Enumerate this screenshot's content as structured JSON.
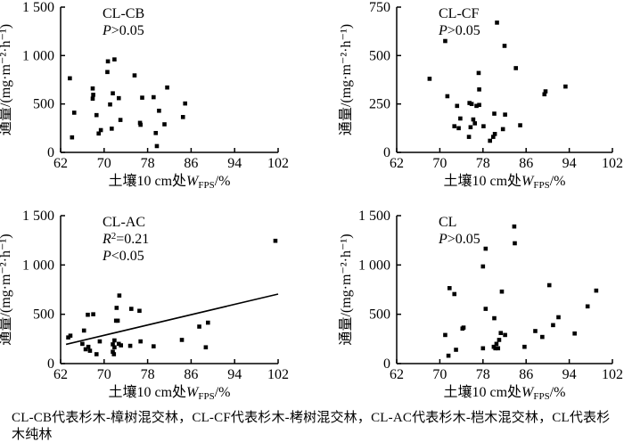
{
  "figure": {
    "background": "#ffffff",
    "ink": "#000000"
  },
  "caption": "CL-CB代表杉木-樟树混交林，CL-CF代表杉木-栲树混交林，CL-AC代表杉木-桤木混交林，CL代表杉木纯林",
  "chart_data": [
    {
      "type": "scatter",
      "title": "CL-CB",
      "stats": [
        [
          {
            "t": "P",
            "i": true
          },
          {
            "t": ">0.05"
          }
        ]
      ],
      "xlabel_segments": [
        {
          "t": "土壤10 cm处"
        },
        {
          "t": "W",
          "i": true
        },
        {
          "t": "FPS",
          "sub": true
        },
        {
          "t": "/%"
        }
      ],
      "ylabel": "通量/(mg·m⁻²·h⁻¹)",
      "xlim": [
        62,
        102
      ],
      "xticks": [
        62,
        70,
        78,
        86,
        94,
        102
      ],
      "ylim": [
        0,
        1500
      ],
      "yticks": [
        0,
        500,
        1000,
        1500
      ],
      "ytick_labels": [
        "0",
        "500",
        "1 000",
        "1 500"
      ],
      "marker": "square",
      "trendline": null,
      "points": [
        [
          63.7,
          765
        ],
        [
          64.1,
          155
        ],
        [
          64.5,
          410
        ],
        [
          67.9,
          660
        ],
        [
          68,
          595
        ],
        [
          67.9,
          555
        ],
        [
          68.6,
          385
        ],
        [
          69,
          195
        ],
        [
          69.4,
          230
        ],
        [
          70.6,
          830
        ],
        [
          70.7,
          940
        ],
        [
          71.1,
          495
        ],
        [
          71.4,
          245
        ],
        [
          71.6,
          610
        ],
        [
          71.9,
          960
        ],
        [
          72.7,
          560
        ],
        [
          73,
          335
        ],
        [
          75.6,
          795
        ],
        [
          76.6,
          305
        ],
        [
          76.7,
          285
        ],
        [
          77,
          565
        ],
        [
          79.1,
          570
        ],
        [
          79.5,
          200
        ],
        [
          79.7,
          65
        ],
        [
          80.1,
          430
        ],
        [
          81.1,
          290
        ],
        [
          81.6,
          670
        ],
        [
          84.5,
          365
        ],
        [
          84.9,
          505
        ]
      ]
    },
    {
      "type": "scatter",
      "title": "CL-CF",
      "stats": [
        [
          {
            "t": "P",
            "i": true
          },
          {
            "t": ">0.05"
          }
        ]
      ],
      "xlabel_segments": [
        {
          "t": "土壤10 cm处"
        },
        {
          "t": "W",
          "i": true
        },
        {
          "t": "FPS",
          "sub": true
        },
        {
          "t": "/%"
        }
      ],
      "ylabel": "通量/(mg·m⁻²·h⁻¹)",
      "xlim": [
        62,
        102
      ],
      "xticks": [
        62,
        70,
        78,
        86,
        94,
        102
      ],
      "ylim": [
        0,
        750
      ],
      "yticks": [
        0,
        250,
        500,
        750
      ],
      "ytick_labels": [
        "0",
        "250",
        "500",
        "750"
      ],
      "marker": "square",
      "trendline": null,
      "points": [
        [
          68.1,
          380
        ],
        [
          71,
          575
        ],
        [
          71.4,
          290
        ],
        [
          72.7,
          135
        ],
        [
          73.2,
          240
        ],
        [
          73.5,
          125
        ],
        [
          73.8,
          175
        ],
        [
          75.4,
          80
        ],
        [
          75.5,
          255
        ],
        [
          75.7,
          130
        ],
        [
          75.9,
          250
        ],
        [
          76.2,
          170
        ],
        [
          76.5,
          150
        ],
        [
          76.8,
          240
        ],
        [
          77.3,
          325
        ],
        [
          77.3,
          245
        ],
        [
          77.2,
          410
        ],
        [
          78.1,
          135
        ],
        [
          79.3,
          60
        ],
        [
          79.9,
          80
        ],
        [
          80.1,
          200
        ],
        [
          80.2,
          95
        ],
        [
          80.6,
          670
        ],
        [
          82,
          550
        ],
        [
          82.1,
          195
        ],
        [
          81.7,
          120
        ],
        [
          84.1,
          435
        ],
        [
          84.9,
          140
        ],
        [
          89.4,
          300
        ],
        [
          89.6,
          315
        ],
        [
          93.3,
          340
        ]
      ]
    },
    {
      "type": "scatter",
      "title": "CL-AC",
      "stats": [
        [
          {
            "t": "R",
            "i": true
          },
          {
            "t": "2",
            "sup": true
          },
          {
            "t": "=0.21"
          }
        ],
        [
          {
            "t": "P",
            "i": true
          },
          {
            "t": "<0.05"
          }
        ]
      ],
      "xlabel_segments": [
        {
          "t": "土壤10 cm处"
        },
        {
          "t": "W",
          "i": true
        },
        {
          "t": "FPS",
          "sub": true
        },
        {
          "t": "/%"
        }
      ],
      "ylabel": "通量/(mg·m⁻²·h⁻¹)",
      "xlim": [
        62,
        102
      ],
      "xticks": [
        62,
        70,
        78,
        86,
        94,
        102
      ],
      "ylim": [
        0,
        1500
      ],
      "yticks": [
        0,
        500,
        1000,
        1500
      ],
      "ytick_labels": [
        "0",
        "500",
        "1 000",
        "1 500"
      ],
      "marker": "square",
      "trendline": {
        "x1": 63,
        "y1": 195,
        "x2": 102,
        "y2": 705
      },
      "points": [
        [
          63.4,
          265
        ],
        [
          63.8,
          283
        ],
        [
          66,
          200
        ],
        [
          66.3,
          335
        ],
        [
          66.6,
          145
        ],
        [
          67,
          495
        ],
        [
          67.1,
          170
        ],
        [
          67.4,
          130
        ],
        [
          68,
          500
        ],
        [
          68.6,
          95
        ],
        [
          69.2,
          225
        ],
        [
          71.6,
          120
        ],
        [
          71.6,
          195
        ],
        [
          71.8,
          95
        ],
        [
          71.9,
          235
        ],
        [
          71.9,
          165
        ],
        [
          72.2,
          435
        ],
        [
          72.3,
          565
        ],
        [
          72.5,
          435
        ],
        [
          72.7,
          200
        ],
        [
          72.8,
          690
        ],
        [
          73.1,
          185
        ],
        [
          74.8,
          180
        ],
        [
          75,
          555
        ],
        [
          76.5,
          535
        ],
        [
          76.7,
          225
        ],
        [
          79.1,
          175
        ],
        [
          84.3,
          240
        ],
        [
          87.5,
          375
        ],
        [
          88.7,
          165
        ],
        [
          89.1,
          415
        ],
        [
          101.5,
          1245
        ]
      ]
    },
    {
      "type": "scatter",
      "title": "CL",
      "stats": [
        [
          {
            "t": "P",
            "i": true
          },
          {
            "t": ">0.05"
          }
        ]
      ],
      "xlabel_segments": [
        {
          "t": "土壤10 cm处"
        },
        {
          "t": "W",
          "i": true
        },
        {
          "t": "FPS",
          "sub": true
        },
        {
          "t": "/%"
        }
      ],
      "ylabel": "通量/(mg·m⁻²·h⁻¹)",
      "xlim": [
        62,
        102
      ],
      "xticks": [
        62,
        70,
        78,
        86,
        94,
        102
      ],
      "ylim": [
        0,
        1500
      ],
      "yticks": [
        0,
        500,
        1000,
        1500
      ],
      "ytick_labels": [
        "0",
        "500",
        "1 000",
        "1 500"
      ],
      "marker": "square",
      "trendline": null,
      "points": [
        [
          71,
          290
        ],
        [
          71.6,
          80
        ],
        [
          71.8,
          765
        ],
        [
          72.7,
          705
        ],
        [
          73,
          140
        ],
        [
          74.2,
          355
        ],
        [
          74.4,
          365
        ],
        [
          78,
          985
        ],
        [
          78.5,
          1165
        ],
        [
          78.5,
          555
        ],
        [
          78,
          155
        ],
        [
          80,
          170
        ],
        [
          80.1,
          460
        ],
        [
          80.3,
          155
        ],
        [
          80.5,
          200
        ],
        [
          80.8,
          155
        ],
        [
          81,
          240
        ],
        [
          81.3,
          310
        ],
        [
          81.5,
          730
        ],
        [
          82.1,
          290
        ],
        [
          83.8,
          1390
        ],
        [
          83.9,
          1220
        ],
        [
          85.7,
          170
        ],
        [
          87.7,
          330
        ],
        [
          89,
          270
        ],
        [
          90.3,
          795
        ],
        [
          91,
          390
        ],
        [
          92,
          470
        ],
        [
          95,
          305
        ],
        [
          97.4,
          580
        ],
        [
          99,
          740
        ]
      ]
    }
  ]
}
